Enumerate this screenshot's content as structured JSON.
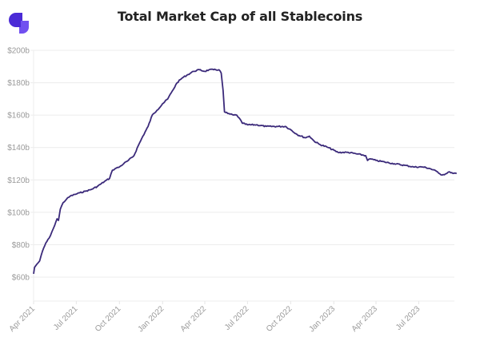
{
  "logo": {
    "name": "app-logo",
    "colors": [
      "#4b2bd6",
      "#6a45ef"
    ]
  },
  "chart_data": {
    "type": "line",
    "title": "Total Market Cap of all Stablecoins",
    "xlabel": "",
    "ylabel": "",
    "ylim": [
      45,
      200
    ],
    "xlim": [
      "2021-04-01",
      "2023-09-20"
    ],
    "grid": true,
    "legend": "none",
    "line_color": "#3b2a7a",
    "yticks": [
      {
        "value": 60,
        "label": "$60b"
      },
      {
        "value": 80,
        "label": "$80b"
      },
      {
        "value": 100,
        "label": "$100b"
      },
      {
        "value": 120,
        "label": "$120b"
      },
      {
        "value": 140,
        "label": "$140b"
      },
      {
        "value": 160,
        "label": "$160b"
      },
      {
        "value": 180,
        "label": "$180b"
      },
      {
        "value": 200,
        "label": "$200b"
      }
    ],
    "xticks": [
      {
        "date": "2021-04-01",
        "label": "Apr 2021"
      },
      {
        "date": "2021-07-01",
        "label": "Jul 2021"
      },
      {
        "date": "2021-10-01",
        "label": "Oct 2021"
      },
      {
        "date": "2022-01-01",
        "label": "Jan 2022"
      },
      {
        "date": "2022-04-01",
        "label": "Apr 2022"
      },
      {
        "date": "2022-07-01",
        "label": "Jul 2022"
      },
      {
        "date": "2022-10-01",
        "label": "Oct 2022"
      },
      {
        "date": "2023-01-01",
        "label": "Jan 2023"
      },
      {
        "date": "2023-04-01",
        "label": "Apr 2023"
      },
      {
        "date": "2023-07-01",
        "label": "Jul 2023"
      }
    ],
    "series": [
      {
        "name": "Total Market Cap",
        "units": "USD billions",
        "points": [
          [
            "2021-04-01",
            62
          ],
          [
            "2021-04-03",
            66
          ],
          [
            "2021-04-08",
            68
          ],
          [
            "2021-04-14",
            70
          ],
          [
            "2021-04-20",
            76
          ],
          [
            "2021-04-27",
            81
          ],
          [
            "2021-05-04",
            84
          ],
          [
            "2021-05-10",
            88
          ],
          [
            "2021-05-16",
            92
          ],
          [
            "2021-05-21",
            96
          ],
          [
            "2021-05-24",
            95
          ],
          [
            "2021-05-28",
            102
          ],
          [
            "2021-06-03",
            106
          ],
          [
            "2021-06-10",
            108
          ],
          [
            "2021-06-18",
            110
          ],
          [
            "2021-06-28",
            111
          ],
          [
            "2021-07-08",
            112
          ],
          [
            "2021-07-20",
            113
          ],
          [
            "2021-08-01",
            114
          ],
          [
            "2021-08-15",
            116
          ],
          [
            "2021-08-30",
            119
          ],
          [
            "2021-09-10",
            121
          ],
          [
            "2021-09-16",
            126
          ],
          [
            "2021-09-22",
            127
          ],
          [
            "2021-10-01",
            128
          ],
          [
            "2021-10-10",
            130
          ],
          [
            "2021-10-20",
            132
          ],
          [
            "2021-11-01",
            135
          ],
          [
            "2021-11-10",
            141
          ],
          [
            "2021-11-20",
            147
          ],
          [
            "2021-12-01",
            153
          ],
          [
            "2021-12-10",
            160
          ],
          [
            "2021-12-20",
            163
          ],
          [
            "2022-01-01",
            167
          ],
          [
            "2022-01-12",
            170
          ],
          [
            "2022-01-22",
            175
          ],
          [
            "2022-02-01",
            180
          ],
          [
            "2022-02-12",
            183
          ],
          [
            "2022-02-24",
            185
          ],
          [
            "2022-03-08",
            187
          ],
          [
            "2022-03-20",
            188
          ],
          [
            "2022-04-01",
            187
          ],
          [
            "2022-04-10",
            188
          ],
          [
            "2022-04-20",
            188
          ],
          [
            "2022-05-01",
            188
          ],
          [
            "2022-05-06",
            186
          ],
          [
            "2022-05-10",
            175
          ],
          [
            "2022-05-13",
            162
          ],
          [
            "2022-05-20",
            161
          ],
          [
            "2022-06-01",
            160
          ],
          [
            "2022-06-08",
            160
          ],
          [
            "2022-06-14",
            158
          ],
          [
            "2022-06-20",
            155
          ],
          [
            "2022-07-01",
            154
          ],
          [
            "2022-07-20",
            154
          ],
          [
            "2022-08-10",
            153
          ],
          [
            "2022-09-01",
            153
          ],
          [
            "2022-09-20",
            153
          ],
          [
            "2022-10-01",
            151
          ],
          [
            "2022-10-15",
            148
          ],
          [
            "2022-11-01",
            146
          ],
          [
            "2022-11-10",
            147
          ],
          [
            "2022-11-20",
            144
          ],
          [
            "2022-12-01",
            142
          ],
          [
            "2022-12-20",
            140
          ],
          [
            "2023-01-10",
            137
          ],
          [
            "2023-02-01",
            137
          ],
          [
            "2023-02-20",
            136
          ],
          [
            "2023-03-10",
            135
          ],
          [
            "2023-03-14",
            132
          ],
          [
            "2023-03-20",
            133
          ],
          [
            "2023-04-01",
            132
          ],
          [
            "2023-04-20",
            131
          ],
          [
            "2023-05-10",
            130
          ],
          [
            "2023-06-01",
            129
          ],
          [
            "2023-06-20",
            128
          ],
          [
            "2023-07-10",
            128
          ],
          [
            "2023-07-25",
            127
          ],
          [
            "2023-08-10",
            125
          ],
          [
            "2023-08-20",
            123
          ],
          [
            "2023-08-30",
            124
          ],
          [
            "2023-09-05",
            125
          ],
          [
            "2023-09-12",
            124
          ],
          [
            "2023-09-20",
            124
          ]
        ]
      }
    ]
  }
}
